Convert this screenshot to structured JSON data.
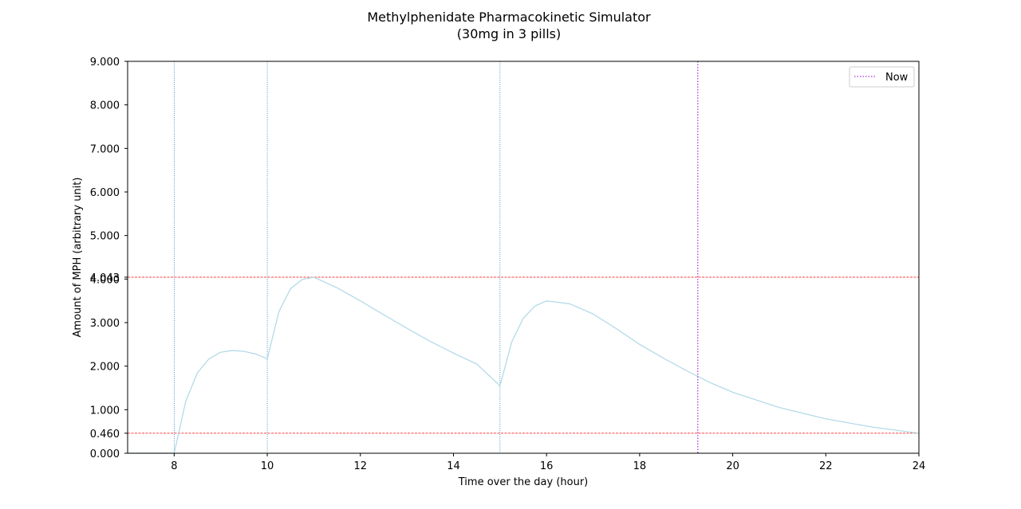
{
  "chart_data": {
    "type": "line",
    "title": "Methylphenidate Pharmacokinetic Simulator",
    "subtitle": "(30mg in 3 pills)",
    "xlabel": "Time over the day (hour)",
    "ylabel": "Amount of MPH (arbitrary unit)",
    "xlim": [
      7,
      24
    ],
    "ylim": [
      0,
      9
    ],
    "x_ticks": [
      8,
      10,
      12,
      14,
      16,
      18,
      20,
      22,
      24
    ],
    "y_ticks": [
      "0.000",
      "0.460",
      "1.000",
      "2.000",
      "3.000",
      "4.000",
      "4.043",
      "5.000",
      "6.000",
      "7.000",
      "8.000",
      "9.000"
    ],
    "grid": false,
    "series": [
      {
        "color": "#add8e6",
        "x": [
          7,
          8,
          8.25,
          8.5,
          8.75,
          9,
          9.25,
          9.5,
          9.75,
          10,
          10.25,
          10.5,
          10.75,
          11,
          11.5,
          12,
          12.5,
          13,
          13.5,
          14,
          14.5,
          15,
          15.25,
          15.5,
          15.75,
          16,
          16.5,
          17,
          17.5,
          18,
          18.5,
          19,
          19.5,
          20,
          21,
          22,
          23,
          24
        ],
        "y": [
          0,
          0,
          1.2,
          1.85,
          2.17,
          2.32,
          2.36,
          2.34,
          2.28,
          2.17,
          3.25,
          3.78,
          3.99,
          4.043,
          3.8,
          3.5,
          3.18,
          2.87,
          2.57,
          2.3,
          2.05,
          1.55,
          2.55,
          3.1,
          3.38,
          3.5,
          3.43,
          3.2,
          2.86,
          2.5,
          2.19,
          1.9,
          1.63,
          1.4,
          1.05,
          0.79,
          0.6,
          0.46
        ]
      }
    ],
    "dose_lines": {
      "x": [
        8,
        10,
        15
      ],
      "color": "#1f77b4"
    },
    "now_line": {
      "label": "Now",
      "x": 19.25,
      "color": "#9400d3"
    },
    "threshold_lines": {
      "y": [
        0.46,
        4.043
      ],
      "color": "#ff0000"
    },
    "legend": {
      "position": "top-right",
      "entries": [
        "Now"
      ]
    }
  }
}
